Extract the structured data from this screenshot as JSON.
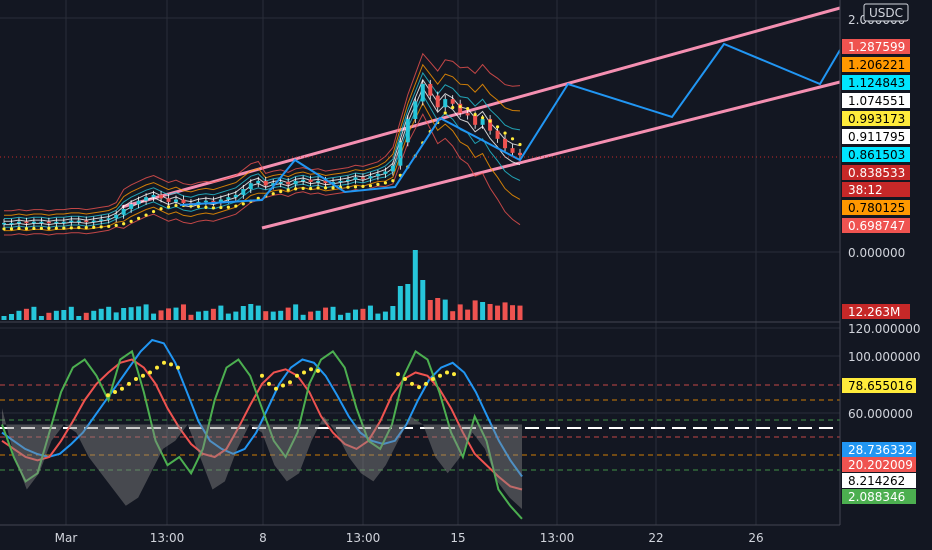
{
  "symbol_badge": "USDC",
  "colors": {
    "background": "#131722",
    "grid": "#2a2e39",
    "pink_channel": "#f48fb1",
    "projection": "#2196f3",
    "ma_dots": "#ffeb3b",
    "up": "#26c6da",
    "down": "#ef5350"
  },
  "chart_data": [
    {
      "type": "line",
      "title": "",
      "y_axis_labels": [
        "2.000000",
        "0.000000"
      ],
      "ylim": [
        -0.4,
        2.1
      ],
      "x_labels": [
        "Mar",
        "13:00",
        "8",
        "13:00",
        "15",
        "13:00",
        "22",
        "26"
      ],
      "price_tags": [
        {
          "value": "1.287599",
          "bg": "#ef5350",
          "fg": "#ffffff"
        },
        {
          "value": "1.206221",
          "bg": "#ff9800",
          "fg": "#000000"
        },
        {
          "value": "1.124843",
          "bg": "#00e5ff",
          "fg": "#000000"
        },
        {
          "value": "1.074551",
          "bg": "#ffffff",
          "fg": "#000000"
        },
        {
          "value": "0.993173",
          "bg": "#ffeb3b",
          "fg": "#000000"
        },
        {
          "value": "0.911795",
          "bg": "#ffffff",
          "fg": "#000000"
        },
        {
          "value": "0.861503",
          "bg": "#00e5ff",
          "fg": "#000000"
        },
        {
          "value": "0.838533",
          "bg": "#c62828",
          "fg": "#ffffff"
        },
        {
          "value": "38:12",
          "bg": "#c62828",
          "fg": "#ffffff"
        },
        {
          "value": "0.780125",
          "bg": "#ff9800",
          "fg": "#000000"
        },
        {
          "value": "0.698747",
          "bg": "#ef5350",
          "fg": "#ffffff"
        }
      ],
      "volume_tag": "12.263M",
      "channel_lower": [
        [
          0.0,
          0.25
        ],
        [
          1.0,
          1.75
        ]
      ],
      "channel_upper": [
        [
          0.0,
          0.55
        ],
        [
          1.0,
          2.05
        ]
      ],
      "projection_path": [
        0.42,
        0.75,
        0.62,
        1.02,
        0.85,
        0.95,
        1.75,
        1.55,
        2.05,
        1.7,
        2.1
      ],
      "candles_close": [
        0.26,
        0.26,
        0.27,
        0.26,
        0.27,
        0.27,
        0.26,
        0.27,
        0.27,
        0.28,
        0.28,
        0.27,
        0.28,
        0.29,
        0.3,
        0.33,
        0.38,
        0.42,
        0.45,
        0.48,
        0.5,
        0.47,
        0.44,
        0.46,
        0.43,
        0.42,
        0.44,
        0.45,
        0.44,
        0.46,
        0.48,
        0.5,
        0.55,
        0.6,
        0.62,
        0.58,
        0.6,
        0.61,
        0.59,
        0.62,
        0.63,
        0.61,
        0.62,
        0.6,
        0.61,
        0.62,
        0.63,
        0.65,
        0.64,
        0.66,
        0.68,
        0.7,
        0.75,
        0.95,
        1.15,
        1.3,
        1.45,
        1.35,
        1.25,
        1.32,
        1.28,
        1.2,
        1.18,
        1.1,
        1.15,
        1.05,
        0.98,
        0.9,
        0.86,
        0.84
      ]
    },
    {
      "type": "line",
      "title": "",
      "y_axis_labels": [
        "120.000000",
        "100.000000",
        "60.000000"
      ],
      "ylim": [
        0,
        120
      ],
      "value_tags": [
        {
          "value": "78.655016",
          "bg": "#ffeb3b",
          "fg": "#000000"
        },
        {
          "value": "28.736332",
          "bg": "#2196f3",
          "fg": "#ffffff"
        },
        {
          "value": "20.202009",
          "bg": "#ef5350",
          "fg": "#ffffff"
        },
        {
          "value": "8.214262",
          "bg": "#ffffff",
          "fg": "#000000"
        },
        {
          "value": "2.088346",
          "bg": "#4caf50",
          "fg": "#ffffff"
        }
      ],
      "series": [
        {
          "color": "#2196f3",
          "values": [
            55,
            50,
            45,
            42,
            40,
            42,
            48,
            55,
            65,
            75,
            85,
            95,
            105,
            112,
            110,
            98,
            80,
            62,
            50,
            45,
            42,
            45,
            55,
            70,
            85,
            95,
            100,
            98,
            90,
            78,
            65,
            55,
            50,
            48,
            50,
            60,
            75,
            88,
            95,
            98,
            92,
            80,
            65,
            50,
            38,
            28
          ]
        },
        {
          "color": "#ef5350",
          "values": [
            50,
            45,
            40,
            38,
            40,
            50,
            62,
            75,
            85,
            92,
            98,
            100,
            95,
            85,
            70,
            58,
            48,
            42,
            40,
            45,
            58,
            72,
            85,
            92,
            94,
            90,
            80,
            65,
            55,
            48,
            45,
            50,
            62,
            78,
            88,
            92,
            90,
            82,
            70,
            55,
            42,
            35,
            28,
            22,
            20
          ]
        },
        {
          "color": "#4caf50",
          "values": [
            60,
            40,
            25,
            30,
            55,
            80,
            95,
            100,
            90,
            75,
            100,
            105,
            80,
            50,
            35,
            40,
            30,
            45,
            75,
            95,
            100,
            90,
            70,
            50,
            40,
            55,
            85,
            100,
            105,
            95,
            70,
            50,
            45,
            60,
            90,
            105,
            100,
            80,
            55,
            40,
            65,
            50,
            20,
            10,
            2
          ]
        },
        {
          "color": "#888888",
          "values": [
            70,
            40,
            20,
            30,
            50,
            60,
            55,
            40,
            30,
            20,
            10,
            15,
            30,
            45,
            50,
            60,
            40,
            20,
            25,
            45,
            60,
            55,
            35,
            25,
            30,
            50,
            65,
            55,
            40,
            30,
            25,
            35,
            50,
            65,
            60,
            40,
            30,
            40,
            55,
            45,
            25,
            15,
            8
          ]
        }
      ],
      "ma_dots": [
        78,
        80,
        82,
        85,
        88,
        90,
        92,
        95,
        98,
        97,
        95,
        90,
        85,
        82,
        84,
        86,
        90,
        92,
        94,
        93,
        91,
        88,
        85,
        83,
        85,
        88,
        90,
        92,
        91,
        89,
        86,
        84
      ]
    }
  ]
}
